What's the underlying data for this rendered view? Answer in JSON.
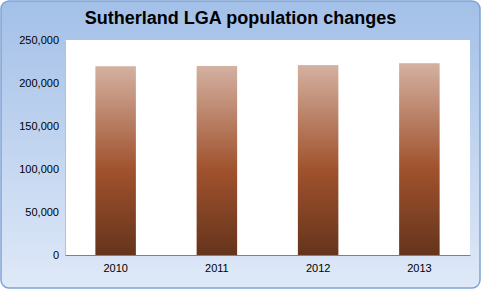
{
  "chart_data": {
    "type": "bar",
    "title": "Sutherland LGA population changes",
    "categories": [
      "2010",
      "2011",
      "2012",
      "2013"
    ],
    "values": [
      219500,
      219800,
      220800,
      223000
    ],
    "color": "#a0522d",
    "ylim": [
      0,
      250000
    ],
    "yticks": [
      0,
      {
        "value": 50000,
        "label": "50,000"
      },
      {
        "value": 100000,
        "label": "100,000"
      },
      {
        "value": 150000,
        "label": "150,000"
      },
      {
        "value": 200000,
        "label": "200,000"
      },
      {
        "value": 250000,
        "label": "250,000"
      }
    ],
    "grid": false
  }
}
